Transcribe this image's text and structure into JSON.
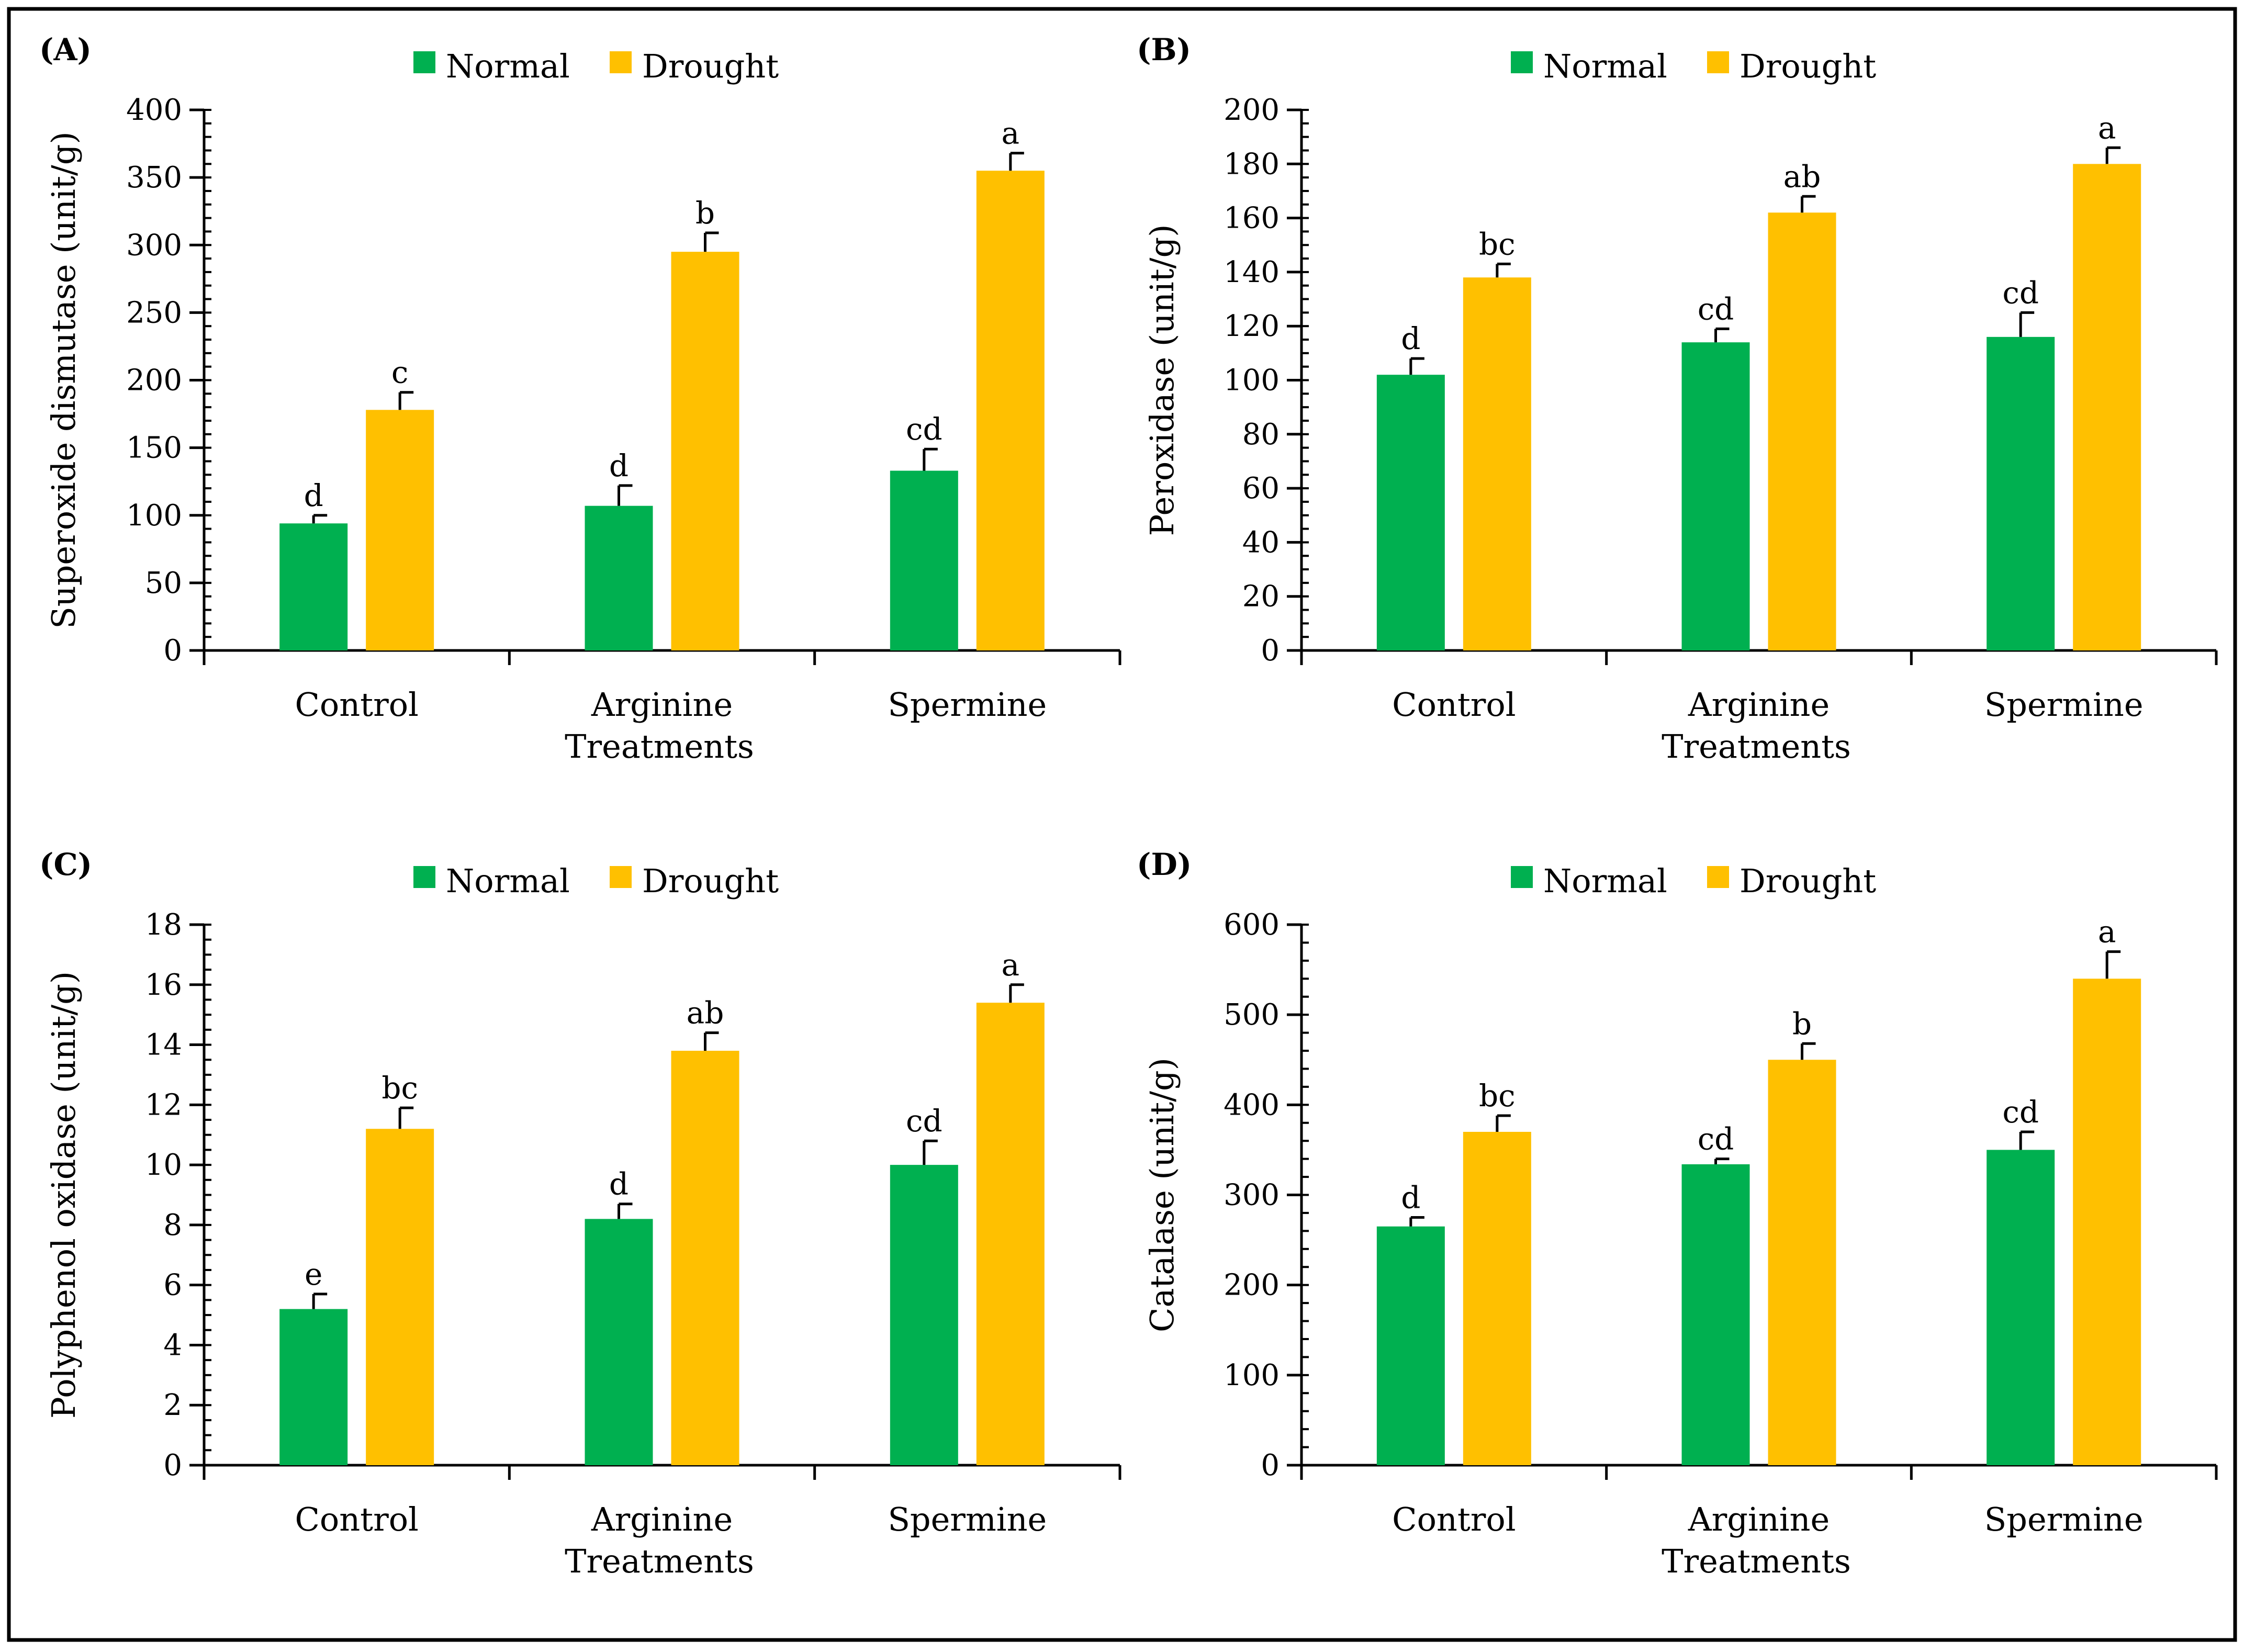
{
  "legend": {
    "normal_label": "Normal",
    "drought_label": "Drought"
  },
  "colors": {
    "normal": "#00B050",
    "drought": "#FFC000",
    "axis": "#000000",
    "frame": "#000000"
  },
  "chart_data": [
    {
      "type": "bar",
      "panel": "(A)",
      "categories": [
        "Control",
        "Arginine",
        "Spermine"
      ],
      "xlabel": "Treatments",
      "ylabel": "Superoxide dismutase (unit/g)",
      "ylim": [
        0,
        400
      ],
      "yticks": [
        0,
        50,
        100,
        150,
        200,
        250,
        300,
        350,
        400
      ],
      "minor_step": 10,
      "legend_position": "top",
      "series": [
        {
          "name": "Normal",
          "values": [
            94,
            107,
            133
          ],
          "errors": [
            6,
            15,
            16
          ],
          "letters": [
            "d",
            "d",
            "cd"
          ]
        },
        {
          "name": "Drought",
          "values": [
            178,
            295,
            355
          ],
          "errors": [
            13,
            14,
            13
          ],
          "letters": [
            "c",
            "b",
            "a"
          ]
        }
      ]
    },
    {
      "type": "bar",
      "panel": "(B)",
      "categories": [
        "Control",
        "Arginine",
        "Spermine"
      ],
      "xlabel": "Treatments",
      "ylabel": "Peroxidase (unit/g)",
      "ylim": [
        0,
        200
      ],
      "yticks": [
        0,
        20,
        40,
        60,
        80,
        100,
        120,
        140,
        160,
        180,
        200
      ],
      "minor_step": 5,
      "legend_position": "top",
      "series": [
        {
          "name": "Normal",
          "values": [
            102,
            114,
            116
          ],
          "errors": [
            6,
            5,
            9
          ],
          "letters": [
            "d",
            "cd",
            "cd"
          ]
        },
        {
          "name": "Drought",
          "values": [
            138,
            162,
            180
          ],
          "errors": [
            5,
            6,
            6
          ],
          "letters": [
            "bc",
            "ab",
            "a"
          ]
        }
      ]
    },
    {
      "type": "bar",
      "panel": "(C)",
      "categories": [
        "Control",
        "Arginine",
        "Spermine"
      ],
      "xlabel": "Treatments",
      "ylabel": "Polyphenol oxidase (unit/g)",
      "ylim": [
        0,
        18
      ],
      "yticks": [
        0,
        2,
        4,
        6,
        8,
        10,
        12,
        14,
        16,
        18
      ],
      "minor_step": 0.5,
      "legend_position": "top",
      "series": [
        {
          "name": "Normal",
          "values": [
            5.2,
            8.2,
            10.0
          ],
          "errors": [
            0.5,
            0.5,
            0.8
          ],
          "letters": [
            "e",
            "d",
            "cd"
          ]
        },
        {
          "name": "Drought",
          "values": [
            11.2,
            13.8,
            15.4
          ],
          "errors": [
            0.7,
            0.6,
            0.6
          ],
          "letters": [
            "bc",
            "ab",
            "a"
          ]
        }
      ]
    },
    {
      "type": "bar",
      "panel": "(D)",
      "categories": [
        "Control",
        "Arginine",
        "Spermine"
      ],
      "xlabel": "Treatments",
      "ylabel": "Catalase (unit/g)",
      "ylim": [
        0,
        600
      ],
      "yticks": [
        0,
        100,
        200,
        300,
        400,
        500,
        600
      ],
      "minor_step": 20,
      "legend_position": "top",
      "series": [
        {
          "name": "Normal",
          "values": [
            265,
            334,
            350
          ],
          "errors": [
            10,
            6,
            20
          ],
          "letters": [
            "d",
            "cd",
            "cd"
          ]
        },
        {
          "name": "Drought",
          "values": [
            370,
            450,
            540
          ],
          "errors": [
            18,
            18,
            30
          ],
          "letters": [
            "bc",
            "b",
            "a"
          ]
        }
      ]
    }
  ]
}
